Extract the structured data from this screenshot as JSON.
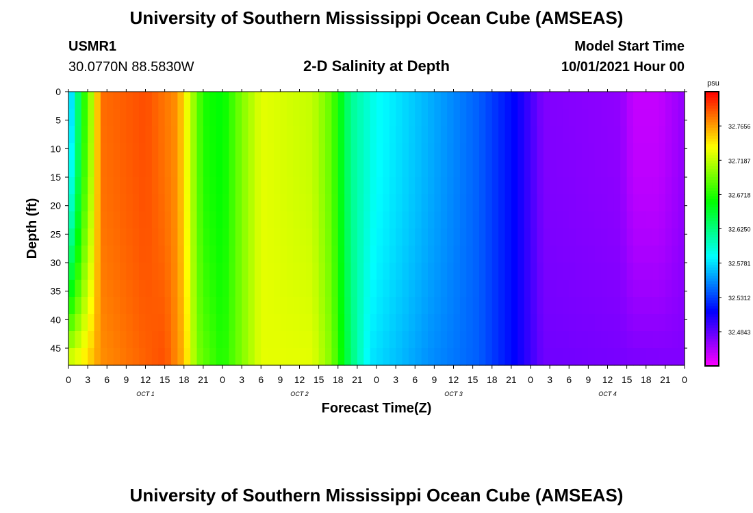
{
  "page": {
    "title": "University of Southern Mississippi Ocean Cube (AMSEAS)",
    "footer_title": "University of Southern Mississippi Ocean Cube (AMSEAS)",
    "station_id": "USMR1",
    "coordinates": "30.0770N  88.5830W",
    "subtitle": "2-D Salinity at Depth",
    "model_start_label": "Model Start Time",
    "model_start_value": "10/01/2021 Hour 00"
  },
  "chart_data": {
    "type": "heatmap",
    "title": "2-D Salinity at Depth",
    "xlabel": "Forecast Time(Z)",
    "ylabel": "Depth (ft)",
    "units": "psu",
    "x_hours": [
      0,
      96
    ],
    "y_depth_ft": [
      0,
      48
    ],
    "y_inverted": true,
    "xtick_labels": [
      "0",
      "3",
      "6",
      "9",
      "12",
      "15",
      "18",
      "21",
      "0",
      "3",
      "6",
      "9",
      "12",
      "15",
      "18",
      "21",
      "0",
      "3",
      "6",
      "9",
      "12",
      "15",
      "18",
      "21",
      "0",
      "3",
      "6",
      "9",
      "12",
      "15",
      "18",
      "21",
      "0"
    ],
    "day_labels": [
      "OCT  1",
      "OCT  2",
      "OCT  3",
      "OCT  4"
    ],
    "ytick_labels": [
      "0",
      "5",
      "10",
      "15",
      "20",
      "25",
      "30",
      "35",
      "40",
      "45"
    ],
    "ytick_values": [
      0,
      5,
      10,
      15,
      20,
      25,
      30,
      35,
      40,
      45
    ],
    "colorbar": {
      "label": "psu",
      "tick_labels": [
        "32.7656",
        "32.7187",
        "32.6718",
        "32.6250",
        "32.5781",
        "32.5312",
        "32.4843"
      ],
      "tick_values": [
        32.7656,
        32.7187,
        32.6718,
        32.625,
        32.5781,
        32.5312,
        32.4843
      ],
      "range": [
        32.4375,
        32.8125
      ]
    },
    "surface_profile_psu": [
      [
        0,
        32.56
      ],
      [
        1,
        32.6
      ],
      [
        2,
        32.66
      ],
      [
        3,
        32.69
      ],
      [
        4,
        32.73
      ],
      [
        5,
        32.78
      ],
      [
        12,
        32.79
      ],
      [
        17,
        32.77
      ],
      [
        19,
        32.72
      ],
      [
        21,
        32.67
      ],
      [
        24,
        32.66
      ],
      [
        27,
        32.7
      ],
      [
        30,
        32.73
      ],
      [
        38,
        32.72
      ],
      [
        41,
        32.69
      ],
      [
        44,
        32.62
      ],
      [
        48,
        32.59
      ],
      [
        56,
        32.565
      ],
      [
        64,
        32.54
      ],
      [
        70,
        32.51
      ],
      [
        74,
        32.475
      ],
      [
        86,
        32.47
      ],
      [
        88,
        32.455
      ],
      [
        92,
        32.455
      ],
      [
        96,
        32.47
      ]
    ],
    "bottom_profile_psu": [
      [
        0,
        32.73
      ],
      [
        2,
        32.74
      ],
      [
        5,
        32.77
      ],
      [
        15,
        32.79
      ],
      [
        18,
        32.76
      ],
      [
        19,
        32.73
      ],
      [
        20,
        32.7
      ],
      [
        24,
        32.67
      ],
      [
        27,
        32.7
      ],
      [
        30,
        32.73
      ],
      [
        38,
        32.73
      ],
      [
        41,
        32.7
      ],
      [
        44,
        32.63
      ],
      [
        47,
        32.58
      ],
      [
        56,
        32.555
      ],
      [
        64,
        32.54
      ],
      [
        70,
        32.51
      ],
      [
        74,
        32.48
      ],
      [
        96,
        32.475
      ]
    ]
  }
}
